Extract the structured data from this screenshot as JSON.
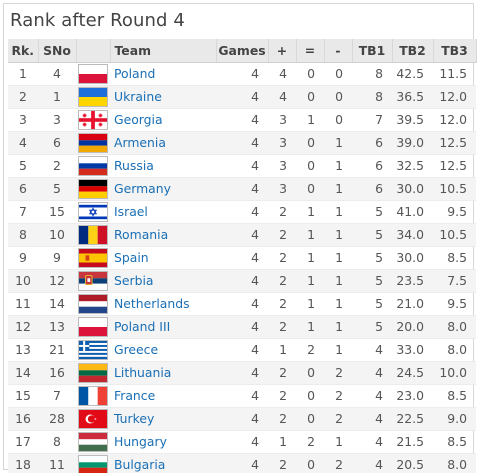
{
  "title": "Rank after Round 4",
  "headers": [
    "Rk.",
    "SNo",
    "",
    "Team",
    "Games",
    "+",
    "=",
    "-",
    "TB1",
    "TB2",
    "TB3"
  ],
  "rows": [
    {
      "rk": "1",
      "sno": "4",
      "flag": "poland-flag",
      "team": "Poland",
      "games": "4",
      "w": "4",
      "d": "0",
      "l": "0",
      "tb1": "8",
      "tb2": "42.5",
      "tb3": "11.5"
    },
    {
      "rk": "2",
      "sno": "1",
      "flag": "ukraine-flag",
      "team": "Ukraine",
      "games": "4",
      "w": "4",
      "d": "0",
      "l": "0",
      "tb1": "8",
      "tb2": "36.5",
      "tb3": "12.0"
    },
    {
      "rk": "3",
      "sno": "3",
      "flag": "georgia-flag",
      "team": "Georgia",
      "games": "4",
      "w": "3",
      "d": "1",
      "l": "0",
      "tb1": "7",
      "tb2": "39.5",
      "tb3": "12.0"
    },
    {
      "rk": "4",
      "sno": "6",
      "flag": "armenia-flag",
      "team": "Armenia",
      "games": "4",
      "w": "3",
      "d": "0",
      "l": "1",
      "tb1": "6",
      "tb2": "39.0",
      "tb3": "12.5"
    },
    {
      "rk": "5",
      "sno": "2",
      "flag": "russia-flag",
      "team": "Russia",
      "games": "4",
      "w": "3",
      "d": "0",
      "l": "1",
      "tb1": "6",
      "tb2": "32.5",
      "tb3": "12.5"
    },
    {
      "rk": "6",
      "sno": "5",
      "flag": "germany-flag",
      "team": "Germany",
      "games": "4",
      "w": "3",
      "d": "0",
      "l": "1",
      "tb1": "6",
      "tb2": "30.0",
      "tb3": "10.5"
    },
    {
      "rk": "7",
      "sno": "15",
      "flag": "israel-flag",
      "team": "Israel",
      "games": "4",
      "w": "2",
      "d": "1",
      "l": "1",
      "tb1": "5",
      "tb2": "41.0",
      "tb3": "9.5"
    },
    {
      "rk": "8",
      "sno": "10",
      "flag": "romania-flag",
      "team": "Romania",
      "games": "4",
      "w": "2",
      "d": "1",
      "l": "1",
      "tb1": "5",
      "tb2": "34.0",
      "tb3": "10.5"
    },
    {
      "rk": "9",
      "sno": "9",
      "flag": "spain-flag",
      "team": "Spain",
      "games": "4",
      "w": "2",
      "d": "1",
      "l": "1",
      "tb1": "5",
      "tb2": "30.0",
      "tb3": "8.5"
    },
    {
      "rk": "10",
      "sno": "12",
      "flag": "serbia-flag",
      "team": "Serbia",
      "games": "4",
      "w": "2",
      "d": "1",
      "l": "1",
      "tb1": "5",
      "tb2": "23.5",
      "tb3": "7.5"
    },
    {
      "rk": "11",
      "sno": "14",
      "flag": "netherlands-flag",
      "team": "Netherlands",
      "games": "4",
      "w": "2",
      "d": "1",
      "l": "1",
      "tb1": "5",
      "tb2": "21.0",
      "tb3": "9.5"
    },
    {
      "rk": "12",
      "sno": "13",
      "flag": "poland-flag",
      "team": "Poland III",
      "games": "4",
      "w": "2",
      "d": "1",
      "l": "1",
      "tb1": "5",
      "tb2": "20.0",
      "tb3": "8.0"
    },
    {
      "rk": "13",
      "sno": "21",
      "flag": "greece-flag",
      "team": "Greece",
      "games": "4",
      "w": "1",
      "d": "2",
      "l": "1",
      "tb1": "4",
      "tb2": "33.0",
      "tb3": "8.0"
    },
    {
      "rk": "14",
      "sno": "16",
      "flag": "lithuania-flag",
      "team": "Lithuania",
      "games": "4",
      "w": "2",
      "d": "0",
      "l": "2",
      "tb1": "4",
      "tb2": "24.5",
      "tb3": "10.0"
    },
    {
      "rk": "15",
      "sno": "7",
      "flag": "france-flag",
      "team": "France",
      "games": "4",
      "w": "2",
      "d": "0",
      "l": "2",
      "tb1": "4",
      "tb2": "23.0",
      "tb3": "8.5"
    },
    {
      "rk": "16",
      "sno": "28",
      "flag": "turkey-flag",
      "team": "Turkey",
      "games": "4",
      "w": "2",
      "d": "0",
      "l": "2",
      "tb1": "4",
      "tb2": "22.5",
      "tb3": "9.0"
    },
    {
      "rk": "17",
      "sno": "8",
      "flag": "hungary-flag",
      "team": "Hungary",
      "games": "4",
      "w": "1",
      "d": "2",
      "l": "1",
      "tb1": "4",
      "tb2": "21.5",
      "tb3": "8.5"
    },
    {
      "rk": "18",
      "sno": "11",
      "flag": "bulgaria-flag",
      "team": "Bulgaria",
      "games": "4",
      "w": "2",
      "d": "0",
      "l": "2",
      "tb1": "4",
      "tb2": "20.5",
      "tb3": "8.0"
    }
  ],
  "colors": {
    "link": "#1a6fb5",
    "header_bg": "#e9e9e9",
    "alt_row": "#f4f4f4"
  }
}
